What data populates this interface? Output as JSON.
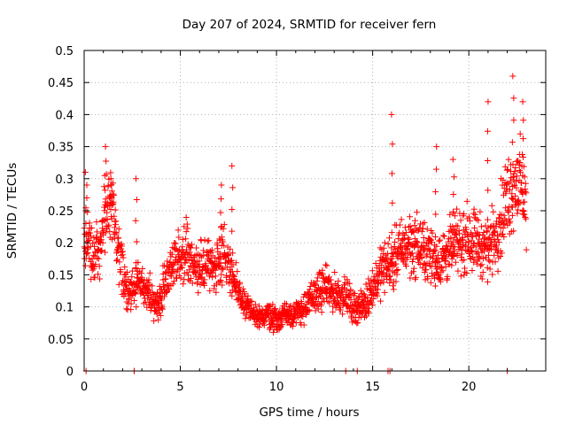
{
  "chart_data": {
    "type": "scatter",
    "title": "Day 207 of 2024, SRMTID for receiver fern",
    "xlabel": "GPS time / hours",
    "ylabel": "SRMTID / TECUs",
    "xlim": [
      0,
      24
    ],
    "ylim": [
      0,
      0.5
    ],
    "x_ticks": [
      0,
      5,
      10,
      15,
      20
    ],
    "x_tick_labels": [
      "0",
      "5",
      "10",
      "15",
      "20"
    ],
    "y_ticks": [
      0,
      0.05,
      0.1,
      0.15,
      0.2,
      0.25,
      0.3,
      0.35,
      0.4,
      0.45,
      0.5
    ],
    "y_tick_labels": [
      "0",
      "0.05",
      "0.1",
      "0.15",
      "0.2",
      "0.25",
      "0.3",
      "0.35",
      "0.4",
      "0.45",
      "0.5"
    ],
    "grid": true,
    "marker": "plus",
    "color": "#ff0000",
    "series": [
      {
        "name": "SRMTID",
        "trend": {
          "x": [
            0.0,
            0.5,
            1.0,
            1.3,
            1.8,
            2.3,
            2.8,
            3.3,
            3.8,
            4.3,
            4.8,
            5.3,
            5.8,
            6.3,
            6.8,
            7.2,
            7.6,
            8.0,
            8.5,
            9.0,
            9.5,
            10.0,
            10.5,
            11.0,
            11.5,
            12.0,
            12.5,
            13.0,
            13.5,
            14.0,
            14.5,
            15.0,
            15.5,
            16.0,
            16.5,
            17.0,
            17.5,
            18.0,
            18.5,
            19.0,
            19.5,
            20.0,
            20.5,
            21.0,
            21.5,
            22.0,
            22.5,
            23.0
          ],
          "y": [
            0.22,
            0.17,
            0.22,
            0.27,
            0.18,
            0.12,
            0.14,
            0.12,
            0.1,
            0.15,
            0.17,
            0.19,
            0.15,
            0.17,
            0.16,
            0.19,
            0.16,
            0.12,
            0.1,
            0.08,
            0.09,
            0.08,
            0.09,
            0.09,
            0.1,
            0.12,
            0.13,
            0.12,
            0.12,
            0.1,
            0.1,
            0.13,
            0.16,
            0.17,
            0.19,
            0.2,
            0.19,
            0.18,
            0.17,
            0.19,
            0.2,
            0.21,
            0.2,
            0.19,
            0.22,
            0.27,
            0.3,
            0.26
          ]
        },
        "spikes": [
          {
            "x": 0.1,
            "y": 0.31
          },
          {
            "x": 1.1,
            "y": 0.35
          },
          {
            "x": 1.4,
            "y": 0.3
          },
          {
            "x": 2.7,
            "y": 0.3
          },
          {
            "x": 7.1,
            "y": 0.29
          },
          {
            "x": 7.7,
            "y": 0.32
          },
          {
            "x": 16.0,
            "y": 0.4
          },
          {
            "x": 18.3,
            "y": 0.35
          },
          {
            "x": 19.2,
            "y": 0.33
          },
          {
            "x": 21.0,
            "y": 0.42
          },
          {
            "x": 22.3,
            "y": 0.46
          },
          {
            "x": 22.8,
            "y": 0.42
          }
        ],
        "zero_points": [
          {
            "x": 0.1,
            "y": 0
          },
          {
            "x": 2.6,
            "y": 0
          },
          {
            "x": 2.6,
            "y": 0
          },
          {
            "x": 13.6,
            "y": 0
          },
          {
            "x": 14.2,
            "y": 0
          },
          {
            "x": 15.8,
            "y": 0
          },
          {
            "x": 15.9,
            "y": 0
          },
          {
            "x": 22.0,
            "y": 0
          }
        ]
      }
    ]
  }
}
